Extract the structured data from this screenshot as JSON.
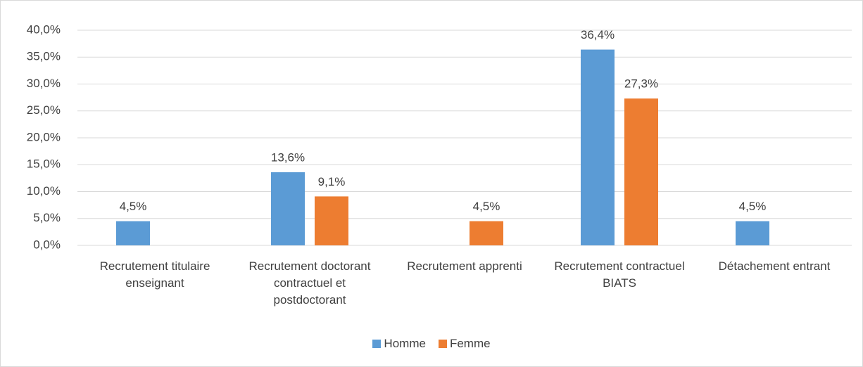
{
  "chart_data": {
    "type": "bar",
    "categories": [
      "Recrutement titulaire enseignant",
      "Recrutement doctorant contractuel et postdoctorant",
      "Recrutement apprenti",
      "Recrutement contractuel BIATS",
      "Détachement entrant"
    ],
    "series": [
      {
        "name": "Homme",
        "color": "#5b9bd5",
        "values": [
          4.5,
          13.6,
          null,
          36.4,
          4.5
        ],
        "value_labels": [
          "4,5%",
          "13,6%",
          null,
          "36,4%",
          "4,5%"
        ]
      },
      {
        "name": "Femme",
        "color": "#ed7d31",
        "values": [
          null,
          9.1,
          4.5,
          27.3,
          null
        ],
        "value_labels": [
          null,
          "9,1%",
          "4,5%",
          "27,3%",
          null
        ]
      }
    ],
    "ylim": [
      0,
      40
    ],
    "yticks": [
      {
        "value": 0,
        "label": "0,0%"
      },
      {
        "value": 5,
        "label": "5,0%"
      },
      {
        "value": 10,
        "label": "10,0%"
      },
      {
        "value": 15,
        "label": "15,0%"
      },
      {
        "value": 20,
        "label": "20,0%"
      },
      {
        "value": 25,
        "label": "25,0%"
      },
      {
        "value": 30,
        "label": "30,0%"
      },
      {
        "value": 35,
        "label": "35,0%"
      },
      {
        "value": 40,
        "label": "40,0%"
      }
    ],
    "grid": true,
    "legend": "bottom"
  }
}
